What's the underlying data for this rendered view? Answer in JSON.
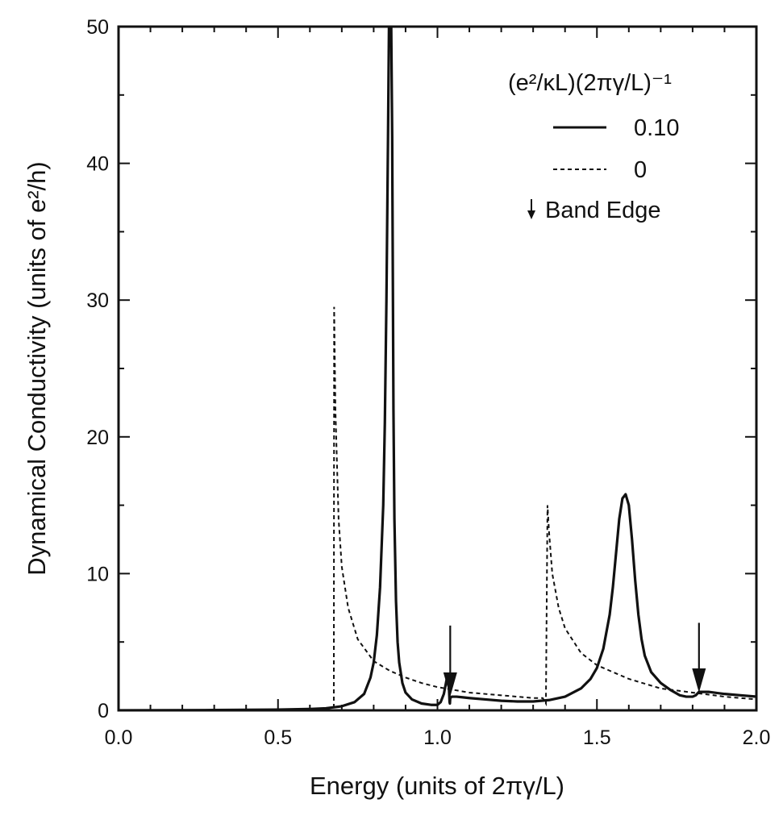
{
  "chart_data": {
    "type": "line",
    "title": "",
    "xlabel": "Energy (units of 2πγ/L)",
    "ylabel": "Dynamical Conductivity (units of e²/h)",
    "xlim": [
      0.0,
      2.0
    ],
    "ylim": [
      0,
      50
    ],
    "xticks": [
      0.0,
      0.5,
      1.0,
      1.5,
      2.0
    ],
    "xtick_labels": [
      "0.0",
      "0.5",
      "1.0",
      "1.5",
      "2.0"
    ],
    "yticks": [
      0,
      10,
      20,
      30,
      40,
      50
    ],
    "ytick_labels": [
      "0",
      "10",
      "20",
      "30",
      "40",
      "50"
    ],
    "grid": false,
    "legend": {
      "placement": "top-right",
      "header": "(e²/κL)(2πγ/L)⁻¹",
      "entries": [
        {
          "label": "0.10",
          "style": "solid"
        },
        {
          "label": "0",
          "style": "dashed"
        },
        {
          "label": "Band Edge",
          "style": "arrow"
        }
      ]
    },
    "series": [
      {
        "name": "0.10",
        "style": "solid",
        "x": [
          0.0,
          0.3,
          0.5,
          0.6,
          0.65,
          0.7,
          0.74,
          0.77,
          0.79,
          0.8,
          0.81,
          0.82,
          0.83,
          0.835,
          0.84,
          0.845,
          0.848,
          0.85,
          0.852,
          0.855,
          0.858,
          0.86,
          0.862,
          0.865,
          0.87,
          0.875,
          0.88,
          0.89,
          0.9,
          0.92,
          0.95,
          0.98,
          1.0,
          1.01,
          1.02,
          1.03,
          1.035,
          1.038,
          1.039,
          1.04,
          1.045,
          1.05,
          1.06,
          1.08,
          1.1,
          1.15,
          1.2,
          1.25,
          1.3,
          1.35,
          1.4,
          1.45,
          1.48,
          1.5,
          1.52,
          1.54,
          1.55,
          1.56,
          1.57,
          1.58,
          1.59,
          1.6,
          1.61,
          1.62,
          1.63,
          1.64,
          1.65,
          1.67,
          1.7,
          1.73,
          1.76,
          1.78,
          1.8,
          1.81,
          1.82,
          1.83,
          1.85,
          1.9,
          1.95,
          2.0
        ],
        "y": [
          0,
          0.02,
          0.05,
          0.1,
          0.15,
          0.3,
          0.6,
          1.2,
          2.4,
          3.5,
          5.5,
          9,
          15,
          21,
          30,
          42,
          50,
          50,
          50,
          50,
          42,
          32,
          22,
          14,
          8,
          5,
          3.5,
          2,
          1.3,
          0.8,
          0.5,
          0.4,
          0.4,
          0.6,
          1.2,
          2.4,
          2.2,
          0.6,
          0.5,
          0.9,
          1.0,
          1.0,
          1.0,
          0.95,
          0.9,
          0.8,
          0.7,
          0.65,
          0.65,
          0.75,
          1.0,
          1.6,
          2.3,
          3.1,
          4.5,
          7,
          9,
          11.5,
          14,
          15.5,
          15.8,
          15,
          12.5,
          9.5,
          7,
          5.2,
          4,
          2.8,
          2,
          1.5,
          1.1,
          1.0,
          1.0,
          1.1,
          1.35,
          1.35,
          1.35,
          1.2,
          1.1,
          1.0
        ]
      },
      {
        "name": "0",
        "style": "dashed",
        "x": [
          0.0,
          0.5,
          0.66,
          0.67,
          0.675,
          0.676,
          0.68,
          0.69,
          0.7,
          0.72,
          0.75,
          0.8,
          0.85,
          0.9,
          0.95,
          1.0,
          1.1,
          1.2,
          1.3,
          1.33,
          1.34,
          1.345,
          1.35,
          1.36,
          1.38,
          1.4,
          1.45,
          1.5,
          1.6,
          1.7,
          1.8,
          1.9,
          2.0
        ],
        "y": [
          0,
          0,
          0,
          0,
          0,
          29.5,
          22,
          14,
          10.5,
          7.5,
          5.2,
          3.6,
          2.9,
          2.4,
          2.0,
          1.7,
          1.3,
          1.1,
          0.9,
          0.9,
          0.5,
          15,
          13,
          10,
          7.5,
          6,
          4.2,
          3.3,
          2.3,
          1.6,
          1.3,
          1.0,
          0.8
        ]
      }
    ],
    "annotations": [
      {
        "type": "arrow",
        "label": "Band Edge",
        "x": 1.04,
        "y_from": 6.2,
        "y_to": 1.0
      },
      {
        "type": "arrow",
        "label": "Band Edge",
        "x": 1.82,
        "y_from": 6.4,
        "y_to": 1.3
      }
    ]
  }
}
